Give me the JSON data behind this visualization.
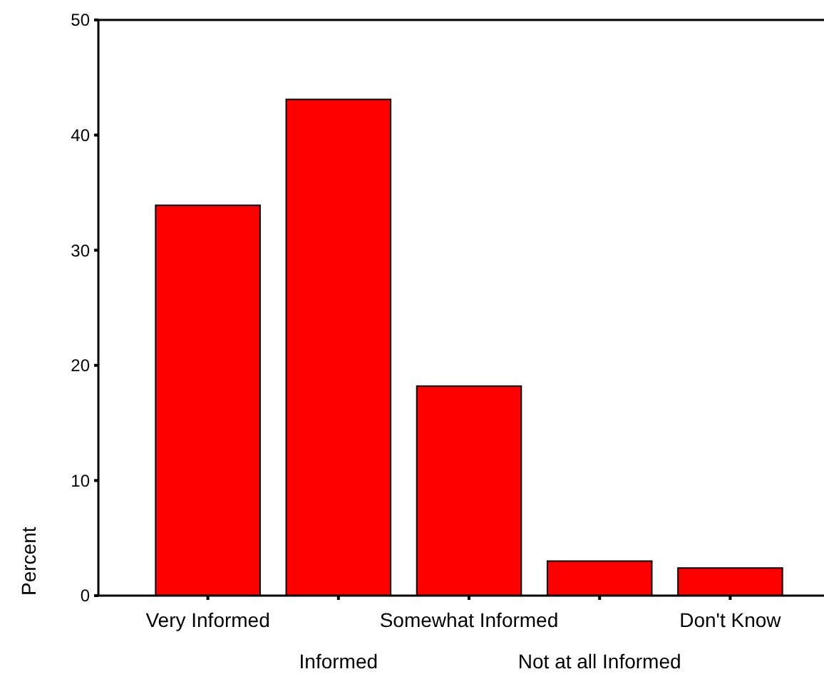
{
  "chart_data": {
    "type": "bar",
    "ylabel": "Percent",
    "categories": [
      "Very Informed",
      "Informed",
      "Somewhat Informed",
      "Not at all Informed",
      "Don't Know"
    ],
    "values": [
      33.9,
      43.1,
      18.2,
      3.0,
      2.4
    ],
    "color": "#ff0000",
    "ylim": [
      0,
      50
    ],
    "yticks": [
      0,
      10,
      20,
      30,
      40,
      50
    ],
    "grid": false
  }
}
